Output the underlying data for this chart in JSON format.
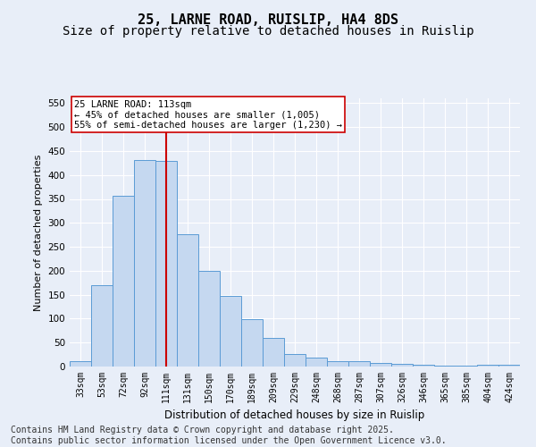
{
  "title1": "25, LARNE ROAD, RUISLIP, HA4 8DS",
  "title2": "Size of property relative to detached houses in Ruislip",
  "xlabel": "Distribution of detached houses by size in Ruislip",
  "ylabel": "Number of detached properties",
  "categories": [
    "33sqm",
    "53sqm",
    "72sqm",
    "92sqm",
    "111sqm",
    "131sqm",
    "150sqm",
    "170sqm",
    "189sqm",
    "209sqm",
    "229sqm",
    "248sqm",
    "268sqm",
    "287sqm",
    "307sqm",
    "326sqm",
    "346sqm",
    "365sqm",
    "385sqm",
    "404sqm",
    "424sqm"
  ],
  "values": [
    12,
    170,
    357,
    432,
    429,
    277,
    200,
    148,
    99,
    60,
    27,
    19,
    11,
    12,
    7,
    5,
    4,
    2,
    1,
    3,
    3
  ],
  "bar_color": "#c5d8f0",
  "bar_edge_color": "#5b9bd5",
  "vline_x_index": 4,
  "vline_color": "#cc0000",
  "annotation_text": "25 LARNE ROAD: 113sqm\n← 45% of detached houses are smaller (1,005)\n55% of semi-detached houses are larger (1,230) →",
  "annotation_box_color": "#ffffff",
  "annotation_box_edge": "#cc0000",
  "ylim": [
    0,
    560
  ],
  "yticks": [
    0,
    50,
    100,
    150,
    200,
    250,
    300,
    350,
    400,
    450,
    500,
    550
  ],
  "background_color": "#e8eef8",
  "grid_color": "#ffffff",
  "footer1": "Contains HM Land Registry data © Crown copyright and database right 2025.",
  "footer2": "Contains public sector information licensed under the Open Government Licence v3.0.",
  "title_fontsize": 11,
  "subtitle_fontsize": 10,
  "tick_fontsize": 7,
  "ylabel_fontsize": 8,
  "xlabel_fontsize": 8.5,
  "footer_fontsize": 7,
  "annotation_fontsize": 7.5
}
